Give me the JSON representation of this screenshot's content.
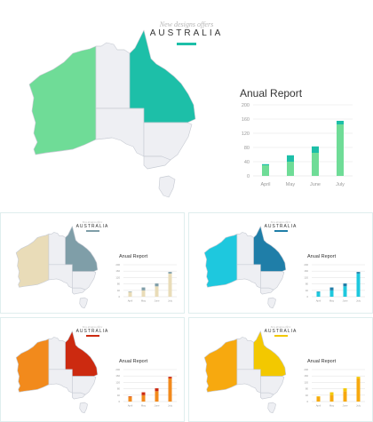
{
  "pre_title": "New designs offers",
  "title": "AUSTRALIA",
  "chart_data": {
    "type": "bar",
    "title": "Anual Report",
    "categories": [
      "April",
      "May",
      "June",
      "July"
    ],
    "ylim": [
      0,
      200
    ],
    "yticks": [
      "0",
      "40",
      "80",
      "120",
      "160",
      "200"
    ],
    "series": [
      {
        "values": [
          30,
          40,
          65,
          145
        ]
      },
      {
        "values": [
          3,
          18,
          18,
          10
        ]
      }
    ],
    "stacked": true,
    "grid": true
  },
  "variants": [
    {
      "id": "slide-main",
      "accent": "#1dbfa8",
      "light": "#6fdc97",
      "bar_top": "#1dbfa8",
      "bar_bottom": "#6fdc97"
    },
    {
      "id": "slide-v1",
      "accent": "#7f9ea8",
      "light": "#e9dcb8",
      "bar_top": "#7f9ea8",
      "bar_bottom": "#e9dcb8"
    },
    {
      "id": "slide-v2",
      "accent": "#1f7ea8",
      "light": "#1ec8de",
      "bar_top": "#1f7ea8",
      "bar_bottom": "#1ec8de"
    },
    {
      "id": "slide-v3",
      "accent": "#cc2a10",
      "light": "#f28a1c",
      "bar_top": "#cc2a10",
      "bar_bottom": "#f28a1c"
    },
    {
      "id": "slide-v4",
      "accent": "#f3c800",
      "light": "#f7a90f",
      "bar_top": "#f3c800",
      "bar_bottom": "#f7a90f"
    }
  ]
}
